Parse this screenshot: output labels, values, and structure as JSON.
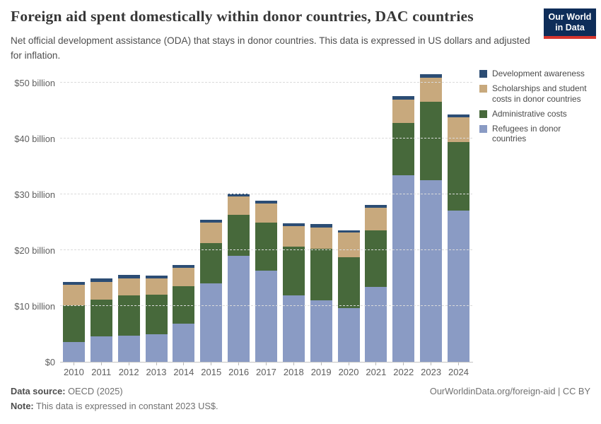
{
  "header": {
    "title": "Foreign aid spent domestically within donor countries, DAC countries",
    "subtitle": "Net official development assistance (ODA) that stays in donor countries. This data is expressed in US dollars and adjusted for inflation.",
    "logo_line1": "Our World",
    "logo_line2": "in Data",
    "logo_bg": "#0e2d59",
    "logo_stripe": "#d7362e"
  },
  "legend": {
    "items": [
      {
        "key": "development-awareness",
        "label": "Development awareness",
        "color": "#2c4d74"
      },
      {
        "key": "scholarships",
        "label": "Scholarships and student costs in donor countries",
        "color": "#c8a97d"
      },
      {
        "key": "administrative-costs",
        "label": "Administrative costs",
        "color": "#47693b"
      },
      {
        "key": "refugees",
        "label": "Refugees in donor countries",
        "color": "#8a9bc4"
      }
    ]
  },
  "chart_data": {
    "type": "bar",
    "stacked": true,
    "title": "Foreign aid spent domestically within donor countries, DAC countries",
    "subtitle": "Net official development assistance (ODA) that stays in donor countries. This data is expressed in US dollars and adjusted for inflation.",
    "unit": "US$ billion (constant 2023 US$)",
    "grid": "horizontal dashed",
    "legend_position": "right",
    "categories": [
      "2010",
      "2011",
      "2012",
      "2013",
      "2014",
      "2015",
      "2016",
      "2017",
      "2018",
      "2019",
      "2020",
      "2021",
      "2022",
      "2023",
      "2024"
    ],
    "series": [
      {
        "key": "refugees",
        "name": "Refugees in donor countries",
        "color": "#8a9bc4",
        "values": [
          3.6,
          4.5,
          4.7,
          4.9,
          6.8,
          14.0,
          19.0,
          16.3,
          11.9,
          11.0,
          9.6,
          13.4,
          33.4,
          32.5,
          27.1
        ]
      },
      {
        "key": "administrative-costs",
        "name": "Administrative costs",
        "color": "#47693b",
        "values": [
          6.5,
          6.6,
          7.2,
          7.1,
          6.7,
          7.3,
          7.3,
          8.7,
          8.7,
          9.3,
          9.2,
          10.1,
          9.4,
          14.1,
          12.3
        ]
      },
      {
        "key": "scholarships",
        "name": "Scholarships and student costs in donor countries",
        "color": "#c8a97d",
        "values": [
          3.7,
          3.2,
          3.1,
          3.0,
          3.3,
          3.7,
          3.3,
          3.3,
          3.7,
          3.8,
          4.4,
          4.1,
          4.2,
          4.3,
          4.4
        ]
      },
      {
        "key": "development-awareness",
        "name": "Development awareness",
        "color": "#2c4d74",
        "values": [
          0.5,
          0.6,
          0.6,
          0.5,
          0.6,
          0.4,
          0.5,
          0.6,
          0.5,
          0.6,
          0.3,
          0.5,
          0.6,
          0.6,
          0.5
        ]
      }
    ],
    "totals": [
      14.3,
      14.9,
      15.6,
      15.5,
      17.4,
      25.4,
      30.1,
      28.9,
      24.8,
      24.7,
      23.5,
      28.1,
      47.6,
      51.5,
      44.3
    ],
    "xlabel": "",
    "ylabel": "",
    "ylim": [
      0,
      52
    ],
    "yticks": [
      0,
      10,
      20,
      30,
      40,
      50
    ],
    "ytick_labels": [
      "$0",
      "$10 billion",
      "$20 billion",
      "$30 billion",
      "$40 billion",
      "$50 billion"
    ]
  },
  "footer": {
    "source_label": "Data source:",
    "source_value": "OECD (2025)",
    "note_label": "Note:",
    "note_value": "This data is expressed in constant 2023 US$.",
    "link": "OurWorldinData.org/foreign-aid | CC BY"
  }
}
